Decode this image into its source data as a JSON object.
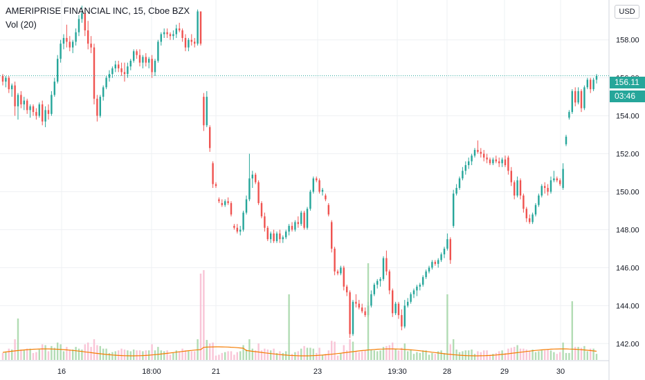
{
  "header": {
    "title": "AMERIPRISE FINANCIAL INC, 15, Cboe BZX",
    "indicator": "Vol (20)",
    "currency": "USD"
  },
  "price_label": {
    "last_price": "156.11",
    "countdown": "03:46"
  },
  "colors": {
    "up": "#26a69a",
    "down": "#ef5350",
    "volume_ma": "#f57c00",
    "grid": "#eef0f3"
  },
  "chart_data": {
    "type": "candlestick",
    "y_axis": {
      "min": 141.1,
      "max": 160.1,
      "ticks": [
        142.0,
        144.0,
        146.0,
        148.0,
        150.0,
        152.0,
        154.0,
        156.0,
        158.0
      ]
    },
    "x_axis_labels": [
      "16",
      "18:00",
      "21",
      "23",
      "19:30",
      "28",
      "29",
      "30"
    ],
    "last_price": 156.11,
    "grid": true,
    "series": [
      {
        "o": 156.1,
        "h": 156.2,
        "l": 155.6,
        "c": 155.8
      },
      {
        "o": 155.8,
        "h": 156.1,
        "l": 155.5,
        "c": 156.0
      },
      {
        "o": 156.0,
        "h": 156.1,
        "l": 155.2,
        "c": 155.4
      },
      {
        "o": 155.4,
        "h": 155.7,
        "l": 155.0,
        "c": 155.6
      },
      {
        "o": 155.6,
        "h": 155.8,
        "l": 154.0,
        "c": 154.5
      },
      {
        "o": 154.5,
        "h": 155.2,
        "l": 153.8,
        "c": 155.1
      },
      {
        "o": 155.1,
        "h": 155.3,
        "l": 154.4,
        "c": 154.6
      },
      {
        "o": 154.6,
        "h": 155.0,
        "l": 154.3,
        "c": 154.8
      },
      {
        "o": 154.8,
        "h": 154.9,
        "l": 154.1,
        "c": 154.3
      },
      {
        "o": 154.3,
        "h": 154.6,
        "l": 153.9,
        "c": 154.5
      },
      {
        "o": 154.5,
        "h": 154.6,
        "l": 154.0,
        "c": 154.2
      },
      {
        "o": 154.2,
        "h": 154.4,
        "l": 153.8,
        "c": 154.0
      },
      {
        "o": 154.0,
        "h": 154.7,
        "l": 153.9,
        "c": 154.6
      },
      {
        "o": 154.6,
        "h": 154.8,
        "l": 153.5,
        "c": 153.7
      },
      {
        "o": 153.7,
        "h": 154.5,
        "l": 153.4,
        "c": 154.3
      },
      {
        "o": 154.3,
        "h": 154.6,
        "l": 153.8,
        "c": 154.1
      },
      {
        "o": 154.1,
        "h": 155.3,
        "l": 154.0,
        "c": 155.1
      },
      {
        "o": 155.1,
        "h": 156.0,
        "l": 155.0,
        "c": 155.8
      },
      {
        "o": 155.8,
        "h": 157.2,
        "l": 155.7,
        "c": 157.0
      },
      {
        "o": 157.0,
        "h": 158.0,
        "l": 156.8,
        "c": 157.8
      },
      {
        "o": 157.8,
        "h": 158.3,
        "l": 157.5,
        "c": 158.1
      },
      {
        "o": 158.1,
        "h": 158.8,
        "l": 157.6,
        "c": 157.9
      },
      {
        "o": 157.9,
        "h": 158.2,
        "l": 157.4,
        "c": 157.6
      },
      {
        "o": 157.6,
        "h": 158.0,
        "l": 157.3,
        "c": 157.9
      },
      {
        "o": 157.9,
        "h": 158.6,
        "l": 157.7,
        "c": 158.4
      },
      {
        "o": 158.4,
        "h": 159.3,
        "l": 158.2,
        "c": 159.1
      },
      {
        "o": 159.1,
        "h": 159.8,
        "l": 158.9,
        "c": 159.4
      },
      {
        "o": 159.4,
        "h": 159.6,
        "l": 158.2,
        "c": 158.5
      },
      {
        "o": 158.5,
        "h": 159.0,
        "l": 157.5,
        "c": 157.8
      },
      {
        "o": 157.8,
        "h": 158.2,
        "l": 157.3,
        "c": 157.6
      },
      {
        "o": 157.6,
        "h": 157.8,
        "l": 154.6,
        "c": 154.9
      },
      {
        "o": 154.9,
        "h": 155.1,
        "l": 153.7,
        "c": 154.0
      },
      {
        "o": 154.0,
        "h": 155.1,
        "l": 153.9,
        "c": 155.0
      },
      {
        "o": 155.0,
        "h": 155.6,
        "l": 154.8,
        "c": 155.5
      },
      {
        "o": 155.5,
        "h": 156.1,
        "l": 155.4,
        "c": 156.0
      },
      {
        "o": 156.0,
        "h": 156.4,
        "l": 155.8,
        "c": 156.2
      },
      {
        "o": 156.2,
        "h": 156.6,
        "l": 156.0,
        "c": 156.5
      },
      {
        "o": 156.5,
        "h": 156.9,
        "l": 156.3,
        "c": 156.7
      },
      {
        "o": 156.7,
        "h": 156.9,
        "l": 156.3,
        "c": 156.5
      },
      {
        "o": 156.5,
        "h": 156.8,
        "l": 156.1,
        "c": 156.3
      },
      {
        "o": 156.3,
        "h": 156.8,
        "l": 155.8,
        "c": 156.2
      },
      {
        "o": 156.2,
        "h": 156.8,
        "l": 156.0,
        "c": 156.6
      },
      {
        "o": 156.6,
        "h": 157.0,
        "l": 156.4,
        "c": 156.9
      },
      {
        "o": 156.9,
        "h": 157.5,
        "l": 156.8,
        "c": 157.4
      },
      {
        "o": 157.4,
        "h": 157.5,
        "l": 157.0,
        "c": 157.2
      },
      {
        "o": 157.2,
        "h": 157.5,
        "l": 156.6,
        "c": 156.8
      },
      {
        "o": 156.8,
        "h": 157.2,
        "l": 156.5,
        "c": 157.1
      },
      {
        "o": 157.1,
        "h": 157.3,
        "l": 156.6,
        "c": 156.8
      },
      {
        "o": 156.8,
        "h": 157.1,
        "l": 156.5,
        "c": 157.0
      },
      {
        "o": 157.0,
        "h": 157.2,
        "l": 156.0,
        "c": 156.3
      },
      {
        "o": 156.3,
        "h": 157.0,
        "l": 156.1,
        "c": 156.9
      },
      {
        "o": 156.9,
        "h": 158.0,
        "l": 156.8,
        "c": 157.9
      },
      {
        "o": 157.9,
        "h": 158.4,
        "l": 157.7,
        "c": 158.3
      },
      {
        "o": 158.3,
        "h": 158.6,
        "l": 158.1,
        "c": 158.4
      },
      {
        "o": 158.4,
        "h": 158.6,
        "l": 158.1,
        "c": 158.3
      },
      {
        "o": 158.3,
        "h": 158.4,
        "l": 158.0,
        "c": 158.2
      },
      {
        "o": 158.2,
        "h": 158.5,
        "l": 158.0,
        "c": 158.3
      },
      {
        "o": 158.3,
        "h": 158.8,
        "l": 158.1,
        "c": 158.6
      },
      {
        "o": 158.6,
        "h": 158.9,
        "l": 158.4,
        "c": 158.5
      },
      {
        "o": 158.5,
        "h": 158.6,
        "l": 157.9,
        "c": 158.1
      },
      {
        "o": 158.1,
        "h": 158.3,
        "l": 157.4,
        "c": 157.6
      },
      {
        "o": 157.6,
        "h": 158.1,
        "l": 157.4,
        "c": 158.0
      },
      {
        "o": 158.0,
        "h": 158.3,
        "l": 157.7,
        "c": 157.9
      },
      {
        "o": 157.9,
        "h": 158.1,
        "l": 157.6,
        "c": 157.8
      },
      {
        "o": 157.8,
        "h": 159.6,
        "l": 157.7,
        "c": 159.5
      },
      {
        "o": 159.5,
        "h": 159.5,
        "l": 157.7,
        "c": 157.8
      },
      {
        "o": 155.0,
        "h": 155.2,
        "l": 153.2,
        "c": 153.5
      },
      {
        "o": 153.5,
        "h": 155.3,
        "l": 153.4,
        "c": 155.0
      },
      {
        "o": 153.4,
        "h": 153.5,
        "l": 152.1,
        "c": 152.3
      },
      {
        "o": 151.5,
        "h": 151.6,
        "l": 150.2,
        "c": 150.4
      },
      {
        "o": 150.4,
        "h": 150.5,
        "l": 150.2,
        "c": 150.3
      },
      {
        "o": 149.6,
        "h": 149.7,
        "l": 149.4,
        "c": 149.5
      },
      {
        "o": 149.4,
        "h": 149.6,
        "l": 149.2,
        "c": 149.3
      },
      {
        "o": 149.3,
        "h": 149.6,
        "l": 149.2,
        "c": 149.5
      },
      {
        "o": 149.5,
        "h": 149.7,
        "l": 149.3,
        "c": 149.4
      },
      {
        "o": 149.4,
        "h": 149.5,
        "l": 148.7,
        "c": 148.8
      },
      {
        "o": 148.2,
        "h": 148.3,
        "l": 148.0,
        "c": 148.1
      },
      {
        "o": 148.1,
        "h": 148.3,
        "l": 147.8,
        "c": 147.9
      },
      {
        "o": 147.9,
        "h": 148.2,
        "l": 147.7,
        "c": 148.0
      },
      {
        "o": 148.0,
        "h": 149.0,
        "l": 147.9,
        "c": 148.9
      },
      {
        "o": 148.9,
        "h": 149.8,
        "l": 148.8,
        "c": 149.6
      },
      {
        "o": 149.6,
        "h": 152.0,
        "l": 149.5,
        "c": 150.7
      },
      {
        "o": 150.7,
        "h": 151.1,
        "l": 150.2,
        "c": 150.9
      },
      {
        "o": 150.9,
        "h": 151.0,
        "l": 150.4,
        "c": 150.5
      },
      {
        "o": 150.5,
        "h": 150.6,
        "l": 149.3,
        "c": 149.4
      },
      {
        "o": 149.4,
        "h": 149.5,
        "l": 148.6,
        "c": 148.7
      },
      {
        "o": 148.7,
        "h": 148.9,
        "l": 147.9,
        "c": 148.1
      },
      {
        "o": 148.1,
        "h": 148.2,
        "l": 147.4,
        "c": 147.5
      },
      {
        "o": 147.5,
        "h": 147.9,
        "l": 147.3,
        "c": 147.8
      },
      {
        "o": 147.8,
        "h": 148.0,
        "l": 147.3,
        "c": 147.4
      },
      {
        "o": 147.4,
        "h": 147.9,
        "l": 147.3,
        "c": 147.8
      },
      {
        "o": 147.8,
        "h": 148.0,
        "l": 147.3,
        "c": 147.5
      },
      {
        "o": 147.5,
        "h": 147.7,
        "l": 147.3,
        "c": 147.6
      },
      {
        "o": 147.6,
        "h": 148.0,
        "l": 147.5,
        "c": 147.9
      },
      {
        "o": 147.9,
        "h": 148.3,
        "l": 147.7,
        "c": 148.2
      },
      {
        "o": 148.2,
        "h": 148.4,
        "l": 147.9,
        "c": 148.0
      },
      {
        "o": 148.0,
        "h": 148.5,
        "l": 147.9,
        "c": 148.4
      },
      {
        "o": 148.4,
        "h": 148.7,
        "l": 148.1,
        "c": 148.3
      },
      {
        "o": 148.3,
        "h": 149.0,
        "l": 148.2,
        "c": 148.9
      },
      {
        "o": 148.9,
        "h": 149.0,
        "l": 148.0,
        "c": 148.1
      },
      {
        "o": 148.1,
        "h": 149.2,
        "l": 148.0,
        "c": 149.1
      },
      {
        "o": 149.1,
        "h": 150.1,
        "l": 149.0,
        "c": 150.0
      },
      {
        "o": 150.0,
        "h": 150.8,
        "l": 149.9,
        "c": 150.7
      },
      {
        "o": 150.7,
        "h": 150.8,
        "l": 150.5,
        "c": 150.6
      },
      {
        "o": 150.6,
        "h": 150.7,
        "l": 149.9,
        "c": 150.0
      },
      {
        "o": 150.0,
        "h": 150.2,
        "l": 149.8,
        "c": 150.1
      },
      {
        "o": 149.8,
        "h": 149.9,
        "l": 149.5,
        "c": 149.6
      },
      {
        "o": 149.3,
        "h": 149.4,
        "l": 148.7,
        "c": 148.8
      },
      {
        "o": 148.4,
        "h": 148.5,
        "l": 146.8,
        "c": 147.0
      },
      {
        "o": 147.0,
        "h": 147.1,
        "l": 145.6,
        "c": 145.8
      },
      {
        "o": 145.8,
        "h": 145.9,
        "l": 145.6,
        "c": 145.7
      },
      {
        "o": 145.7,
        "h": 146.1,
        "l": 145.6,
        "c": 146.0
      },
      {
        "o": 146.0,
        "h": 146.1,
        "l": 144.8,
        "c": 145.0
      },
      {
        "o": 145.0,
        "h": 145.1,
        "l": 144.5,
        "c": 144.7
      },
      {
        "o": 144.7,
        "h": 144.8,
        "l": 142.3,
        "c": 142.5
      },
      {
        "o": 142.5,
        "h": 144.3,
        "l": 142.4,
        "c": 144.2
      },
      {
        "o": 144.2,
        "h": 144.6,
        "l": 143.9,
        "c": 144.1
      },
      {
        "o": 144.1,
        "h": 144.3,
        "l": 143.8,
        "c": 143.9
      },
      {
        "o": 143.9,
        "h": 144.1,
        "l": 143.6,
        "c": 143.7
      },
      {
        "o": 143.7,
        "h": 143.9,
        "l": 143.4,
        "c": 143.5
      },
      {
        "o": 143.5,
        "h": 144.2,
        "l": 143.4,
        "c": 144.0
      },
      {
        "o": 144.0,
        "h": 144.8,
        "l": 143.9,
        "c": 144.6
      },
      {
        "o": 144.6,
        "h": 145.2,
        "l": 144.5,
        "c": 145.1
      },
      {
        "o": 145.1,
        "h": 145.4,
        "l": 144.9,
        "c": 145.3
      },
      {
        "o": 145.3,
        "h": 145.5,
        "l": 145.0,
        "c": 145.4
      },
      {
        "o": 145.4,
        "h": 146.6,
        "l": 145.3,
        "c": 146.5
      },
      {
        "o": 146.5,
        "h": 146.9,
        "l": 145.6,
        "c": 145.8
      },
      {
        "o": 145.8,
        "h": 145.9,
        "l": 144.6,
        "c": 144.8
      },
      {
        "o": 144.8,
        "h": 144.9,
        "l": 143.4,
        "c": 143.6
      },
      {
        "o": 143.6,
        "h": 144.2,
        "l": 143.5,
        "c": 144.1
      },
      {
        "o": 144.1,
        "h": 144.2,
        "l": 143.3,
        "c": 143.5
      },
      {
        "o": 143.5,
        "h": 143.8,
        "l": 142.7,
        "c": 142.9
      },
      {
        "o": 142.9,
        "h": 144.3,
        "l": 142.8,
        "c": 144.0
      },
      {
        "o": 144.0,
        "h": 144.4,
        "l": 143.9,
        "c": 144.2
      },
      {
        "o": 144.2,
        "h": 144.7,
        "l": 144.1,
        "c": 144.6
      },
      {
        "o": 144.6,
        "h": 144.9,
        "l": 144.4,
        "c": 144.8
      },
      {
        "o": 144.8,
        "h": 145.1,
        "l": 144.5,
        "c": 145.0
      },
      {
        "o": 145.0,
        "h": 145.2,
        "l": 144.8,
        "c": 145.1
      },
      {
        "o": 145.1,
        "h": 145.6,
        "l": 145.0,
        "c": 145.5
      },
      {
        "o": 145.5,
        "h": 145.9,
        "l": 145.4,
        "c": 145.8
      },
      {
        "o": 145.8,
        "h": 146.1,
        "l": 145.7,
        "c": 146.0
      },
      {
        "o": 146.0,
        "h": 146.4,
        "l": 145.9,
        "c": 146.3
      },
      {
        "o": 146.3,
        "h": 146.4,
        "l": 146.1,
        "c": 146.2
      },
      {
        "o": 146.2,
        "h": 146.5,
        "l": 146.0,
        "c": 146.4
      },
      {
        "o": 146.4,
        "h": 146.8,
        "l": 146.3,
        "c": 146.7
      },
      {
        "o": 146.7,
        "h": 147.1,
        "l": 146.5,
        "c": 147.0
      },
      {
        "o": 147.0,
        "h": 147.8,
        "l": 146.9,
        "c": 147.5
      },
      {
        "o": 147.5,
        "h": 147.6,
        "l": 146.2,
        "c": 146.4
      },
      {
        "o": 148.2,
        "h": 150.1,
        "l": 148.1,
        "c": 149.9
      },
      {
        "o": 149.9,
        "h": 150.4,
        "l": 149.8,
        "c": 150.2
      },
      {
        "o": 150.2,
        "h": 150.8,
        "l": 150.1,
        "c": 150.7
      },
      {
        "o": 150.7,
        "h": 151.3,
        "l": 150.6,
        "c": 151.1
      },
      {
        "o": 151.1,
        "h": 151.6,
        "l": 150.9,
        "c": 151.4
      },
      {
        "o": 151.4,
        "h": 151.8,
        "l": 151.2,
        "c": 151.6
      },
      {
        "o": 151.6,
        "h": 152.0,
        "l": 151.4,
        "c": 151.9
      },
      {
        "o": 151.9,
        "h": 152.3,
        "l": 151.8,
        "c": 152.2
      },
      {
        "o": 152.2,
        "h": 152.7,
        "l": 152.0,
        "c": 152.1
      },
      {
        "o": 152.1,
        "h": 152.3,
        "l": 151.8,
        "c": 152.0
      },
      {
        "o": 152.0,
        "h": 152.2,
        "l": 151.6,
        "c": 151.8
      },
      {
        "o": 151.8,
        "h": 152.0,
        "l": 151.5,
        "c": 151.7
      },
      {
        "o": 151.7,
        "h": 151.8,
        "l": 151.4,
        "c": 151.5
      },
      {
        "o": 151.5,
        "h": 151.8,
        "l": 151.4,
        "c": 151.7
      },
      {
        "o": 151.7,
        "h": 151.9,
        "l": 151.5,
        "c": 151.6
      },
      {
        "o": 151.6,
        "h": 151.8,
        "l": 151.3,
        "c": 151.5
      },
      {
        "o": 151.5,
        "h": 151.8,
        "l": 151.3,
        "c": 151.7
      },
      {
        "o": 151.7,
        "h": 151.9,
        "l": 151.3,
        "c": 151.4
      },
      {
        "o": 151.8,
        "h": 151.9,
        "l": 150.9,
        "c": 151.1
      },
      {
        "o": 151.1,
        "h": 151.3,
        "l": 150.3,
        "c": 150.5
      },
      {
        "o": 150.5,
        "h": 150.6,
        "l": 149.6,
        "c": 149.8
      },
      {
        "o": 149.8,
        "h": 150.8,
        "l": 149.7,
        "c": 150.6
      },
      {
        "o": 150.6,
        "h": 150.7,
        "l": 149.6,
        "c": 149.8
      },
      {
        "o": 149.8,
        "h": 149.9,
        "l": 148.9,
        "c": 149.1
      },
      {
        "o": 149.1,
        "h": 149.2,
        "l": 148.4,
        "c": 148.6
      },
      {
        "o": 148.6,
        "h": 148.8,
        "l": 148.3,
        "c": 148.4
      },
      {
        "o": 148.4,
        "h": 148.9,
        "l": 148.3,
        "c": 148.8
      },
      {
        "o": 148.8,
        "h": 149.4,
        "l": 148.7,
        "c": 149.3
      },
      {
        "o": 149.3,
        "h": 149.9,
        "l": 149.2,
        "c": 149.8
      },
      {
        "o": 149.8,
        "h": 150.4,
        "l": 149.7,
        "c": 150.3
      },
      {
        "o": 150.3,
        "h": 150.5,
        "l": 149.9,
        "c": 150.2
      },
      {
        "o": 150.2,
        "h": 150.4,
        "l": 149.8,
        "c": 150.0
      },
      {
        "o": 150.0,
        "h": 150.8,
        "l": 149.9,
        "c": 150.6
      },
      {
        "o": 150.6,
        "h": 151.1,
        "l": 150.5,
        "c": 150.7
      },
      {
        "o": 150.7,
        "h": 150.8,
        "l": 150.5,
        "c": 150.6
      },
      {
        "o": 150.6,
        "h": 150.7,
        "l": 150.3,
        "c": 150.4
      },
      {
        "o": 150.2,
        "h": 151.5,
        "l": 150.1,
        "c": 151.2
      },
      {
        "o": 152.5,
        "h": 153.0,
        "l": 152.4,
        "c": 152.9
      },
      {
        "o": 153.9,
        "h": 154.3,
        "l": 153.8,
        "c": 154.2
      },
      {
        "o": 154.2,
        "h": 155.4,
        "l": 154.1,
        "c": 155.3
      },
      {
        "o": 155.3,
        "h": 155.5,
        "l": 154.5,
        "c": 154.7
      },
      {
        "o": 154.7,
        "h": 155.5,
        "l": 154.6,
        "c": 155.3
      },
      {
        "o": 155.3,
        "h": 155.4,
        "l": 154.2,
        "c": 154.4
      },
      {
        "o": 154.4,
        "h": 155.6,
        "l": 154.3,
        "c": 155.5
      },
      {
        "o": 155.5,
        "h": 156.0,
        "l": 155.4,
        "c": 155.9
      },
      {
        "o": 155.9,
        "h": 156.0,
        "l": 155.2,
        "c": 155.4
      },
      {
        "o": 155.4,
        "h": 156.0,
        "l": 155.3,
        "c": 155.9
      },
      {
        "o": 155.9,
        "h": 156.2,
        "l": 155.7,
        "c": 156.1
      }
    ]
  }
}
